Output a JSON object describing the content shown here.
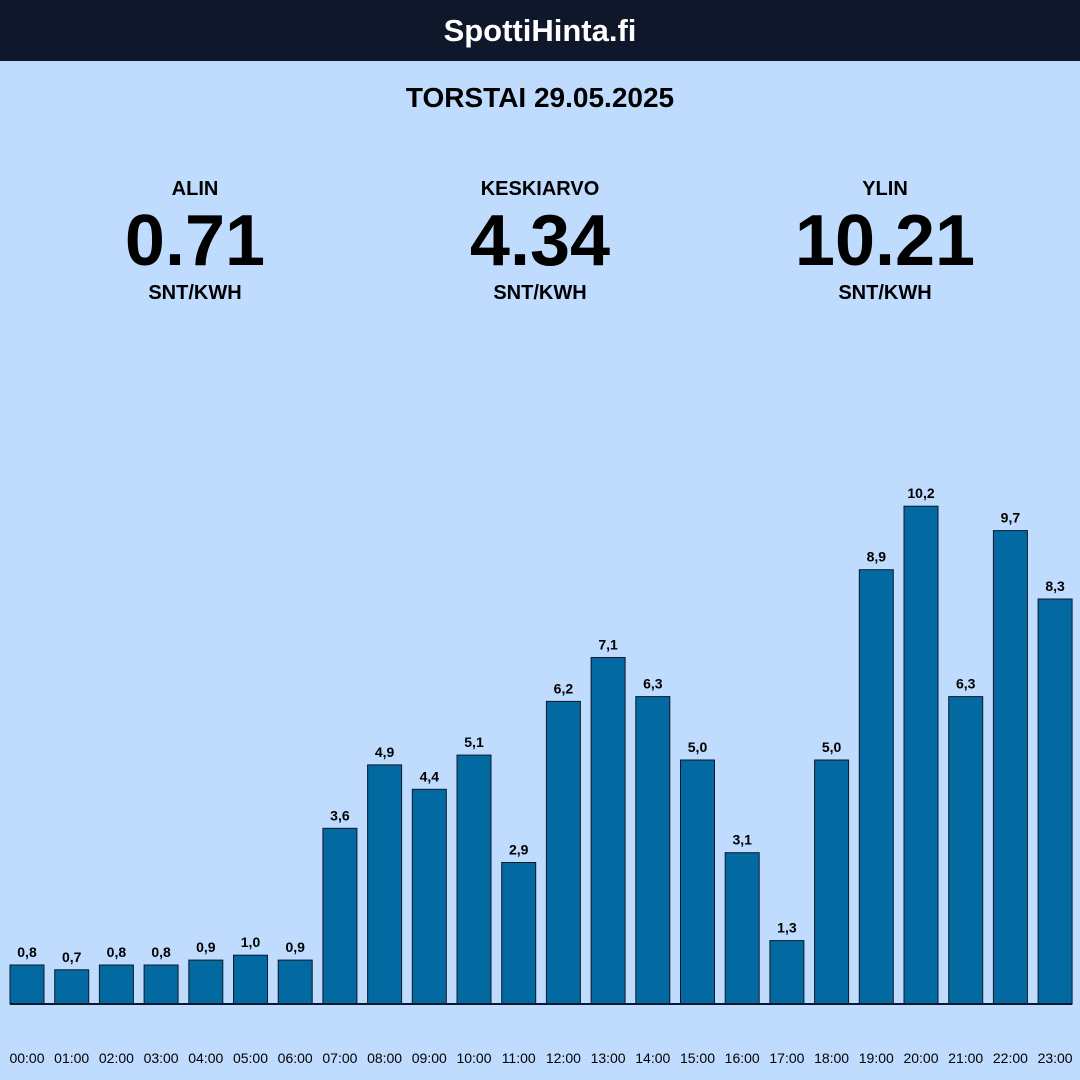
{
  "header": {
    "title": "SpottiHinta.fi"
  },
  "date_label": "TORSTAI 29.05.2025",
  "stats": {
    "min": {
      "label": "ALIN",
      "value": "0.71",
      "unit": "SNT/KWH"
    },
    "avg": {
      "label": "KESKIARVO",
      "value": "4.34",
      "unit": "SNT/KWH"
    },
    "max": {
      "label": "YLIN",
      "value": "10.21",
      "unit": "SNT/KWH"
    }
  },
  "colors": {
    "background": "#bfdbfe",
    "header_bg": "#0f172a",
    "bar_fill": "#0369a1",
    "bar_stroke": "#0f172a"
  },
  "chart_data": {
    "type": "bar",
    "categories": [
      "00:00",
      "01:00",
      "02:00",
      "03:00",
      "04:00",
      "05:00",
      "06:00",
      "07:00",
      "08:00",
      "09:00",
      "10:00",
      "11:00",
      "12:00",
      "13:00",
      "14:00",
      "15:00",
      "16:00",
      "17:00",
      "18:00",
      "19:00",
      "20:00",
      "21:00",
      "22:00",
      "23:00"
    ],
    "values": [
      0.8,
      0.7,
      0.8,
      0.8,
      0.9,
      1.0,
      0.9,
      3.6,
      4.9,
      4.4,
      5.1,
      2.9,
      6.2,
      7.1,
      6.3,
      5.0,
      3.1,
      1.3,
      5.0,
      8.9,
      10.2,
      6.3,
      9.7,
      8.3
    ],
    "value_labels": [
      "0,8",
      "0,7",
      "0,8",
      "0,8",
      "0,9",
      "1,0",
      "0,9",
      "3,6",
      "4,9",
      "4,4",
      "5,1",
      "2,9",
      "6,2",
      "7,1",
      "6,3",
      "5,0",
      "3,1",
      "1,3",
      "5,0",
      "8,9",
      "10,2",
      "6,3",
      "9,7",
      "8,3"
    ],
    "title": "",
    "xlabel": "",
    "ylabel": "",
    "grid": false,
    "legend": "none"
  }
}
